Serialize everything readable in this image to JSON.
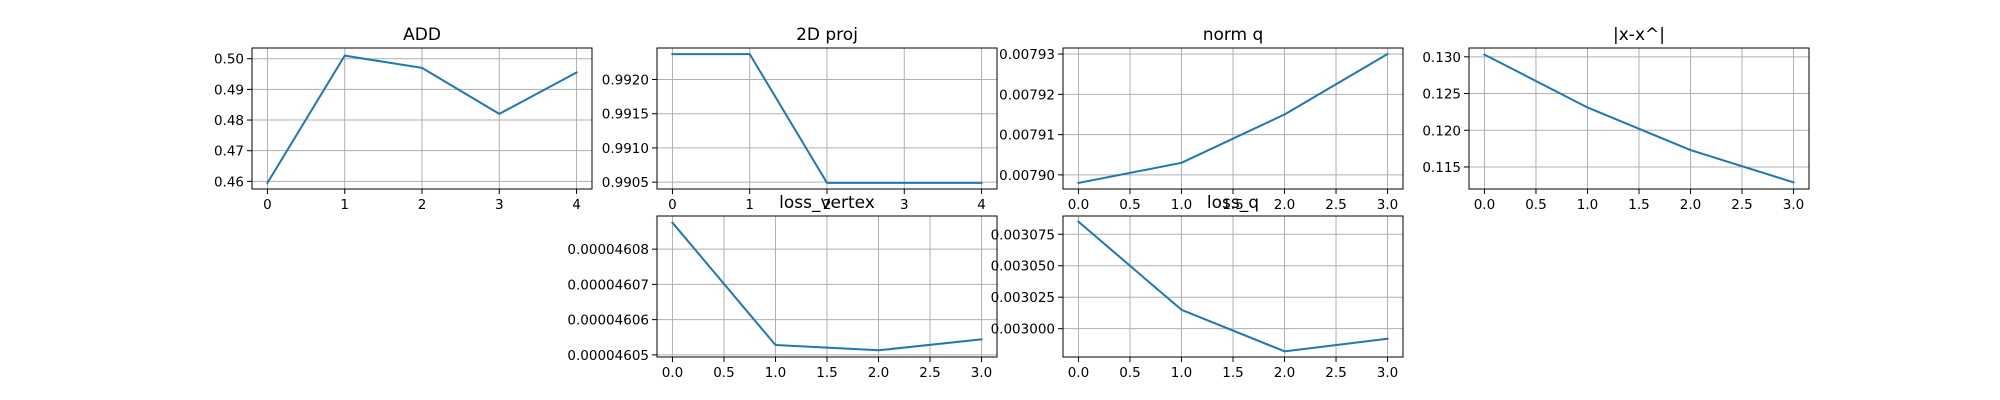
{
  "chart_data": [
    {
      "type": "line",
      "title": "ADD",
      "x": [
        0,
        1,
        2,
        3,
        4
      ],
      "series": [
        {
          "values": [
            0.4595,
            0.501,
            0.497,
            0.482,
            0.4955
          ]
        }
      ],
      "xlim": [
        -0.2,
        4.2
      ],
      "ylim": [
        0.4575,
        0.5035
      ],
      "xticks": [
        0,
        1,
        2,
        3,
        4
      ],
      "xtick_labels": [
        "0",
        "1",
        "2",
        "3",
        "4"
      ],
      "yticks": [
        0.46,
        0.47,
        0.48,
        0.49,
        0.5
      ],
      "ytick_labels": [
        "0.46",
        "0.47",
        "0.48",
        "0.49",
        "0.50"
      ],
      "grid": true,
      "color": "#1f77b4"
    },
    {
      "type": "line",
      "title": "2D proj",
      "x": [
        0,
        1,
        2,
        3,
        4
      ],
      "series": [
        {
          "values": [
            0.99237,
            0.99237,
            0.99049,
            0.99049,
            0.99049
          ]
        }
      ],
      "xlim": [
        -0.2,
        4.2
      ],
      "ylim": [
        0.9904,
        0.99246
      ],
      "xticks": [
        0,
        1,
        2,
        3,
        4
      ],
      "xtick_labels": [
        "0",
        "1",
        "2",
        "3",
        "4"
      ],
      "yticks": [
        0.9905,
        0.991,
        0.9915,
        0.992
      ],
      "ytick_labels": [
        "0.9905",
        "0.9910",
        "0.9915",
        "0.9920"
      ],
      "grid": true,
      "color": "#1f77b4"
    },
    {
      "type": "line",
      "title": "norm q",
      "x": [
        0,
        1,
        2,
        3
      ],
      "series": [
        {
          "values": [
            0.007898,
            0.007903,
            0.007915,
            0.00793
          ]
        }
      ],
      "xlim": [
        -0.15,
        3.15
      ],
      "ylim": [
        0.0078965,
        0.0079315
      ],
      "xticks": [
        0,
        0.5,
        1,
        1.5,
        2,
        2.5,
        3
      ],
      "xtick_labels": [
        "0.0",
        "0.5",
        "1.0",
        "1.5",
        "2.0",
        "2.5",
        "3.0"
      ],
      "yticks": [
        0.0079,
        0.00791,
        0.00792,
        0.00793
      ],
      "ytick_labels": [
        "0.00790",
        "0.00791",
        "0.00792",
        "0.00793"
      ],
      "grid": true,
      "color": "#1f77b4"
    },
    {
      "type": "line",
      "title": "|x-x^|",
      "x": [
        0,
        1,
        2,
        3
      ],
      "series": [
        {
          "values": [
            0.1303,
            0.1231,
            0.1173,
            0.1129
          ]
        }
      ],
      "xlim": [
        -0.15,
        3.15
      ],
      "ylim": [
        0.112,
        0.1312
      ],
      "xticks": [
        0,
        0.5,
        1,
        1.5,
        2,
        2.5,
        3
      ],
      "xtick_labels": [
        "0.0",
        "0.5",
        "1.0",
        "1.5",
        "2.0",
        "2.5",
        "3.0"
      ],
      "yticks": [
        0.115,
        0.12,
        0.125,
        0.13
      ],
      "ytick_labels": [
        "0.115",
        "0.120",
        "0.125",
        "0.130"
      ],
      "grid": true,
      "color": "#1f77b4"
    },
    {
      "type": "line",
      "title": "loss_vertex",
      "x": [
        0,
        1,
        2,
        3
      ],
      "series": [
        {
          "values": [
            4.60875e-05,
            4.60528e-05,
            4.60513e-05,
            4.60544e-05
          ]
        }
      ],
      "xlim": [
        -0.15,
        3.15
      ],
      "ylim": [
        4.60494e-05,
        4.60894e-05
      ],
      "xticks": [
        0,
        0.5,
        1,
        1.5,
        2,
        2.5,
        3
      ],
      "xtick_labels": [
        "0.0",
        "0.5",
        "1.0",
        "1.5",
        "2.0",
        "2.5",
        "3.0"
      ],
      "yticks": [
        4.605e-05,
        4.606e-05,
        4.607e-05,
        4.608e-05
      ],
      "ytick_labels": [
        "0.00004605",
        "0.00004606",
        "0.00004607",
        "0.00004608"
      ],
      "grid": true,
      "color": "#1f77b4"
    },
    {
      "type": "line",
      "title": "loss_q",
      "x": [
        0,
        1,
        2,
        3
      ],
      "series": [
        {
          "values": [
            0.003085,
            0.003015,
            0.002982,
            0.002992
          ]
        }
      ],
      "xlim": [
        -0.15,
        3.15
      ],
      "ylim": [
        0.0029775,
        0.0030895
      ],
      "xticks": [
        0,
        0.5,
        1,
        1.5,
        2,
        2.5,
        3
      ],
      "xtick_labels": [
        "0.0",
        "0.5",
        "1.0",
        "1.5",
        "2.0",
        "2.5",
        "3.0"
      ],
      "yticks": [
        0.003,
        0.003025,
        0.00305,
        0.003075
      ],
      "ytick_labels": [
        "0.003000",
        "0.003025",
        "0.003050",
        "0.003075"
      ],
      "grid": true,
      "color": "#1f77b4"
    }
  ]
}
